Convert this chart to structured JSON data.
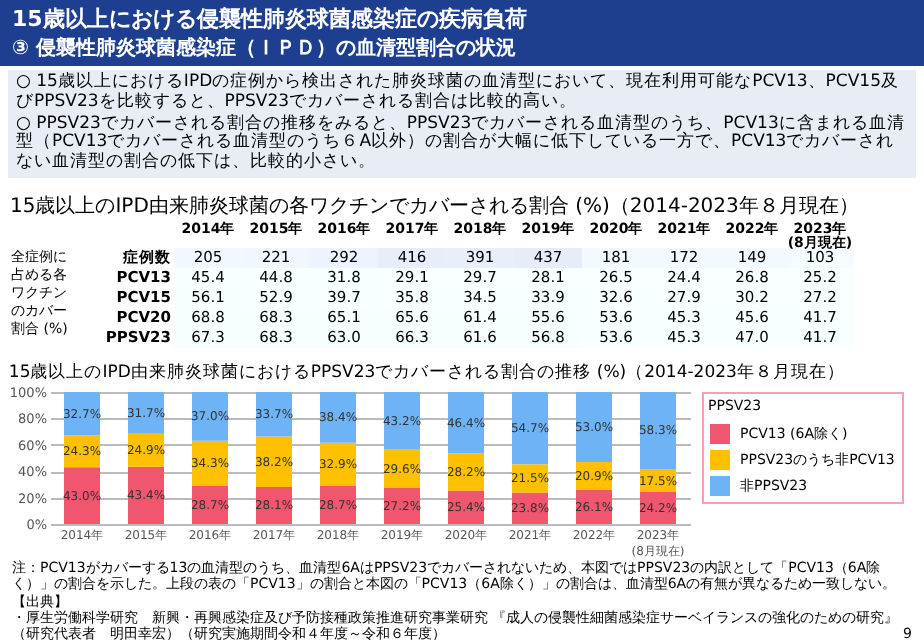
{
  "chart_data": [
    {
      "type": "other",
      "title": "15歳以上における侵襲性肺炎球菌感染症の疾病負荷",
      "subtitle": "③ 侵襲性肺炎球菌感染症（ＩＰＤ）の血清型割合の状況",
      "annotations": [
        "○ 15歳以上におけるIPDの症例から検出された肺炎球菌の血清型において、現在利用可能なPCV13、PCV15及びPPSV23を比較すると、PPSV23でカバーされる割合は比較的高い。",
        "○ PPSV23でカバーされる割合の推移をみると、PPSV23でカバーされる血清型のうち、PCV13に含まれる血清型（PCV13でカバーされる血清型のうち６A以外）の割合が大幅に低下している一方で、PCV13でカバーされない血清型の割合の低下は、比較的小さい。"
      ]
    },
    {
      "type": "heatmap",
      "data_labels": true,
      "title": "15歳以上のIPD由来肺炎球菌の各ワクチンでカバーされる割合 (%)（2014-2023年８月現在）",
      "ylabel": "全症例に占める各ワクチンのカバー割合 (%)",
      "categories": [
        "2014年",
        "2015年",
        "2016年",
        "2017年",
        "2018年",
        "2019年",
        "2020年",
        "2021年",
        "2022年",
        "2023年(8月現在)"
      ],
      "y_categories": [
        "症例数",
        "PCV13",
        "PCV15",
        "PCV20",
        "PPSV23"
      ],
      "cells": [
        [
          205,
          221,
          292,
          416,
          391,
          437,
          181,
          172,
          149,
          103
        ],
        [
          45.4,
          44.8,
          31.8,
          29.1,
          29.7,
          28.1,
          26.5,
          24.4,
          26.8,
          25.2
        ],
        [
          56.1,
          52.9,
          39.7,
          35.8,
          34.5,
          33.9,
          32.6,
          27.9,
          30.2,
          27.2
        ],
        [
          68.8,
          68.3,
          65.1,
          65.6,
          61.4,
          55.6,
          53.6,
          45.3,
          45.6,
          41.7
        ],
        [
          67.3,
          68.3,
          63.0,
          66.3,
          61.6,
          56.8,
          53.6,
          45.3,
          47.0,
          41.7
        ]
      ],
      "cell_labels": [
        [
          "205",
          "221",
          "292",
          "416",
          "391",
          "437",
          "181",
          "172",
          "149",
          "103"
        ],
        [
          "45.4",
          "44.8",
          "31.8",
          "29.1",
          "29.7",
          "28.1",
          "26.5",
          "24.4",
          "26.8",
          "25.2"
        ],
        [
          "56.1",
          "52.9",
          "39.7",
          "35.8",
          "34.5",
          "33.9",
          "32.6",
          "27.9",
          "30.2",
          "27.2"
        ],
        [
          "68.8",
          "68.3",
          "65.1",
          "65.6",
          "61.4",
          "55.6",
          "53.6",
          "45.3",
          "45.6",
          "41.7"
        ],
        [
          "67.3",
          "68.3",
          "63.0",
          "66.3",
          "61.6",
          "56.8",
          "53.6",
          "45.3",
          "47.0",
          "41.7"
        ]
      ]
    },
    {
      "type": "bar",
      "stacked": true,
      "title": "15歳以上のIPD由来肺炎球菌におけるPPSV23でカバーされる割合の推移 (%)（2014-2023年８月現在）",
      "legend_title": "PPSV23",
      "legend": "right",
      "grid": "y",
      "categories": [
        "2014年",
        "2015年",
        "2016年",
        "2017年",
        "2018年",
        "2019年",
        "2020年",
        "2021年",
        "2022年",
        "2023年(8月現在)"
      ],
      "ylim": [
        0,
        100
      ],
      "yticks": [
        {
          "value": 0,
          "label": "0%"
        },
        {
          "value": 20,
          "label": "20%"
        },
        {
          "value": 40,
          "label": "40%"
        },
        {
          "value": 60,
          "label": "60%"
        },
        {
          "value": 80,
          "label": "80%"
        },
        {
          "value": 100,
          "label": "100%"
        }
      ],
      "series": [
        {
          "name": "PCV13 (6A除く)",
          "color": "#f0566e",
          "values": [
            43.0,
            43.4,
            28.7,
            28.1,
            28.7,
            27.2,
            25.4,
            23.8,
            26.1,
            24.2
          ],
          "value_labels": [
            "43.0%",
            "43.4%",
            "28.7%",
            "28.1%",
            "28.7%",
            "27.2%",
            "25.4%",
            "23.8%",
            "26.1%",
            "24.2%"
          ]
        },
        {
          "name": "PPSV23のうち非PCV13",
          "color": "#ffc000",
          "values": [
            24.3,
            24.9,
            34.3,
            38.2,
            32.9,
            29.6,
            28.2,
            21.5,
            20.9,
            17.5
          ],
          "value_labels": [
            "24.3%",
            "24.9%",
            "34.3%",
            "38.2%",
            "32.9%",
            "29.6%",
            "28.2%",
            "21.5%",
            "20.9%",
            "17.5%"
          ]
        },
        {
          "name": "非PPSV23",
          "color": "#6fb3f7",
          "values": [
            32.7,
            31.7,
            37.0,
            33.7,
            38.4,
            43.2,
            46.4,
            54.7,
            53.0,
            58.3
          ],
          "value_labels": [
            "32.7%",
            "31.7%",
            "37.0%",
            "33.7%",
            "38.4%",
            "43.2%",
            "46.4%",
            "54.7%",
            "53.0%",
            "58.3%"
          ]
        }
      ],
      "annotations": [
        "注：PCV13がカバーする13の血清型のうち、血清型6AはPPSV23でカバーされないため、本図ではPPSV23の内訳として「PCV13（6A除く）」の割合を示した。上段の表の「PCV13」の割合と本図の「PCV13（6A除く）」の割合は、血清型6Aの有無が異なるため一致しない。",
        "【出典】",
        "・厚生労働科学研究　新興・再興感染症及び予防接種政策推進研究事業研究 『成人の侵襲性細菌感染症サーベイランスの強化のための研究』（研究代表者　明田幸宏）（研究実施期間令和４年度～令和６年度）",
        "9"
      ]
    }
  ]
}
